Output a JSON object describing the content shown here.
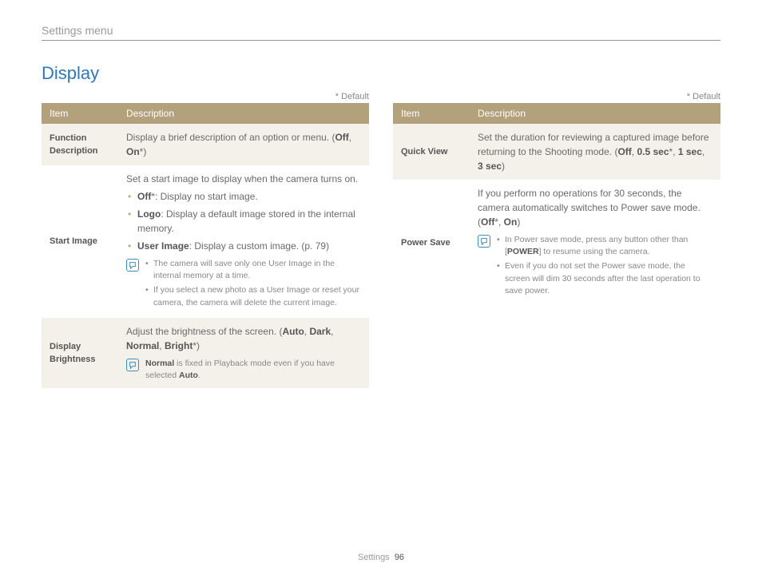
{
  "colors": {
    "accent": "#2a78c0",
    "header_bg": "#b3a17c",
    "row_alt_bg": "#f4f1ea",
    "note_icon": "#3b8fc3",
    "opt_bullet": "#c9a96a",
    "text": "#6a6a6a",
    "rule": "#999999"
  },
  "breadcrumb": "Settings menu",
  "title": "Display",
  "default_note": "* Default",
  "headers": {
    "item": "Item",
    "desc": "Description"
  },
  "left": {
    "rows": [
      {
        "item": "Function Description",
        "desc_pre": "Display a brief description of an option or menu. (",
        "opt1": "Off",
        "sep": ", ",
        "opt2": "On",
        "star": "*",
        "desc_post": ")"
      },
      {
        "item": "Start Image",
        "intro": "Set a start image to display when the camera turns on.",
        "opts": [
          {
            "b": "Off",
            "star": "*",
            "rest": ": Display no start image."
          },
          {
            "b": "Logo",
            "rest": ": Display a default image stored in the internal memory."
          },
          {
            "b": "User Image",
            "rest": ": Display a custom image. (p. 79)"
          }
        ],
        "note": [
          "The camera will save only one User Image in the internal memory at a time.",
          "If you select a new photo as a User Image or reset your camera, the camera will delete the current image."
        ]
      },
      {
        "item": "Display Brightness",
        "desc_pre": "Adjust the brightness of the screen. (",
        "o1": "Auto",
        "s1": ", ",
        "o2": "Dark",
        "s2": ", ",
        "o3": "Normal",
        "s3": ", ",
        "o4": "Bright",
        "star": "*",
        "desc_post": ")",
        "note_b1": "Normal",
        "note_mid": " is fixed in Playback mode even if you have selected ",
        "note_b2": "Auto",
        "note_end": "."
      }
    ]
  },
  "right": {
    "rows": [
      {
        "item": "Quick View",
        "desc_pre": "Set the duration for reviewing a captured image before returning to the Shooting mode. (",
        "o1": "Off",
        "s1": ", ",
        "o2": "0.5 sec",
        "star": "*",
        "s2": ", ",
        "o3": "1 sec",
        "s3": ", ",
        "o4": "3 sec",
        "desc_post": ")"
      },
      {
        "item": "Power Save",
        "desc_pre": "If you perform no operations for 30 seconds, the camera automatically switches to Power save mode. (",
        "o1": "Off",
        "star": "*",
        "s1": ", ",
        "o2": "On",
        "desc_post": ")",
        "note": [
          {
            "pre": "In Power save mode, press any button other than [",
            "b": "POWER",
            "post": "] to resume using the camera."
          },
          {
            "text": "Even if you do not set the Power save mode, the screen will dim 30 seconds after the last operation to save power."
          }
        ]
      }
    ]
  },
  "footer": {
    "label": "Settings",
    "page": "96"
  }
}
